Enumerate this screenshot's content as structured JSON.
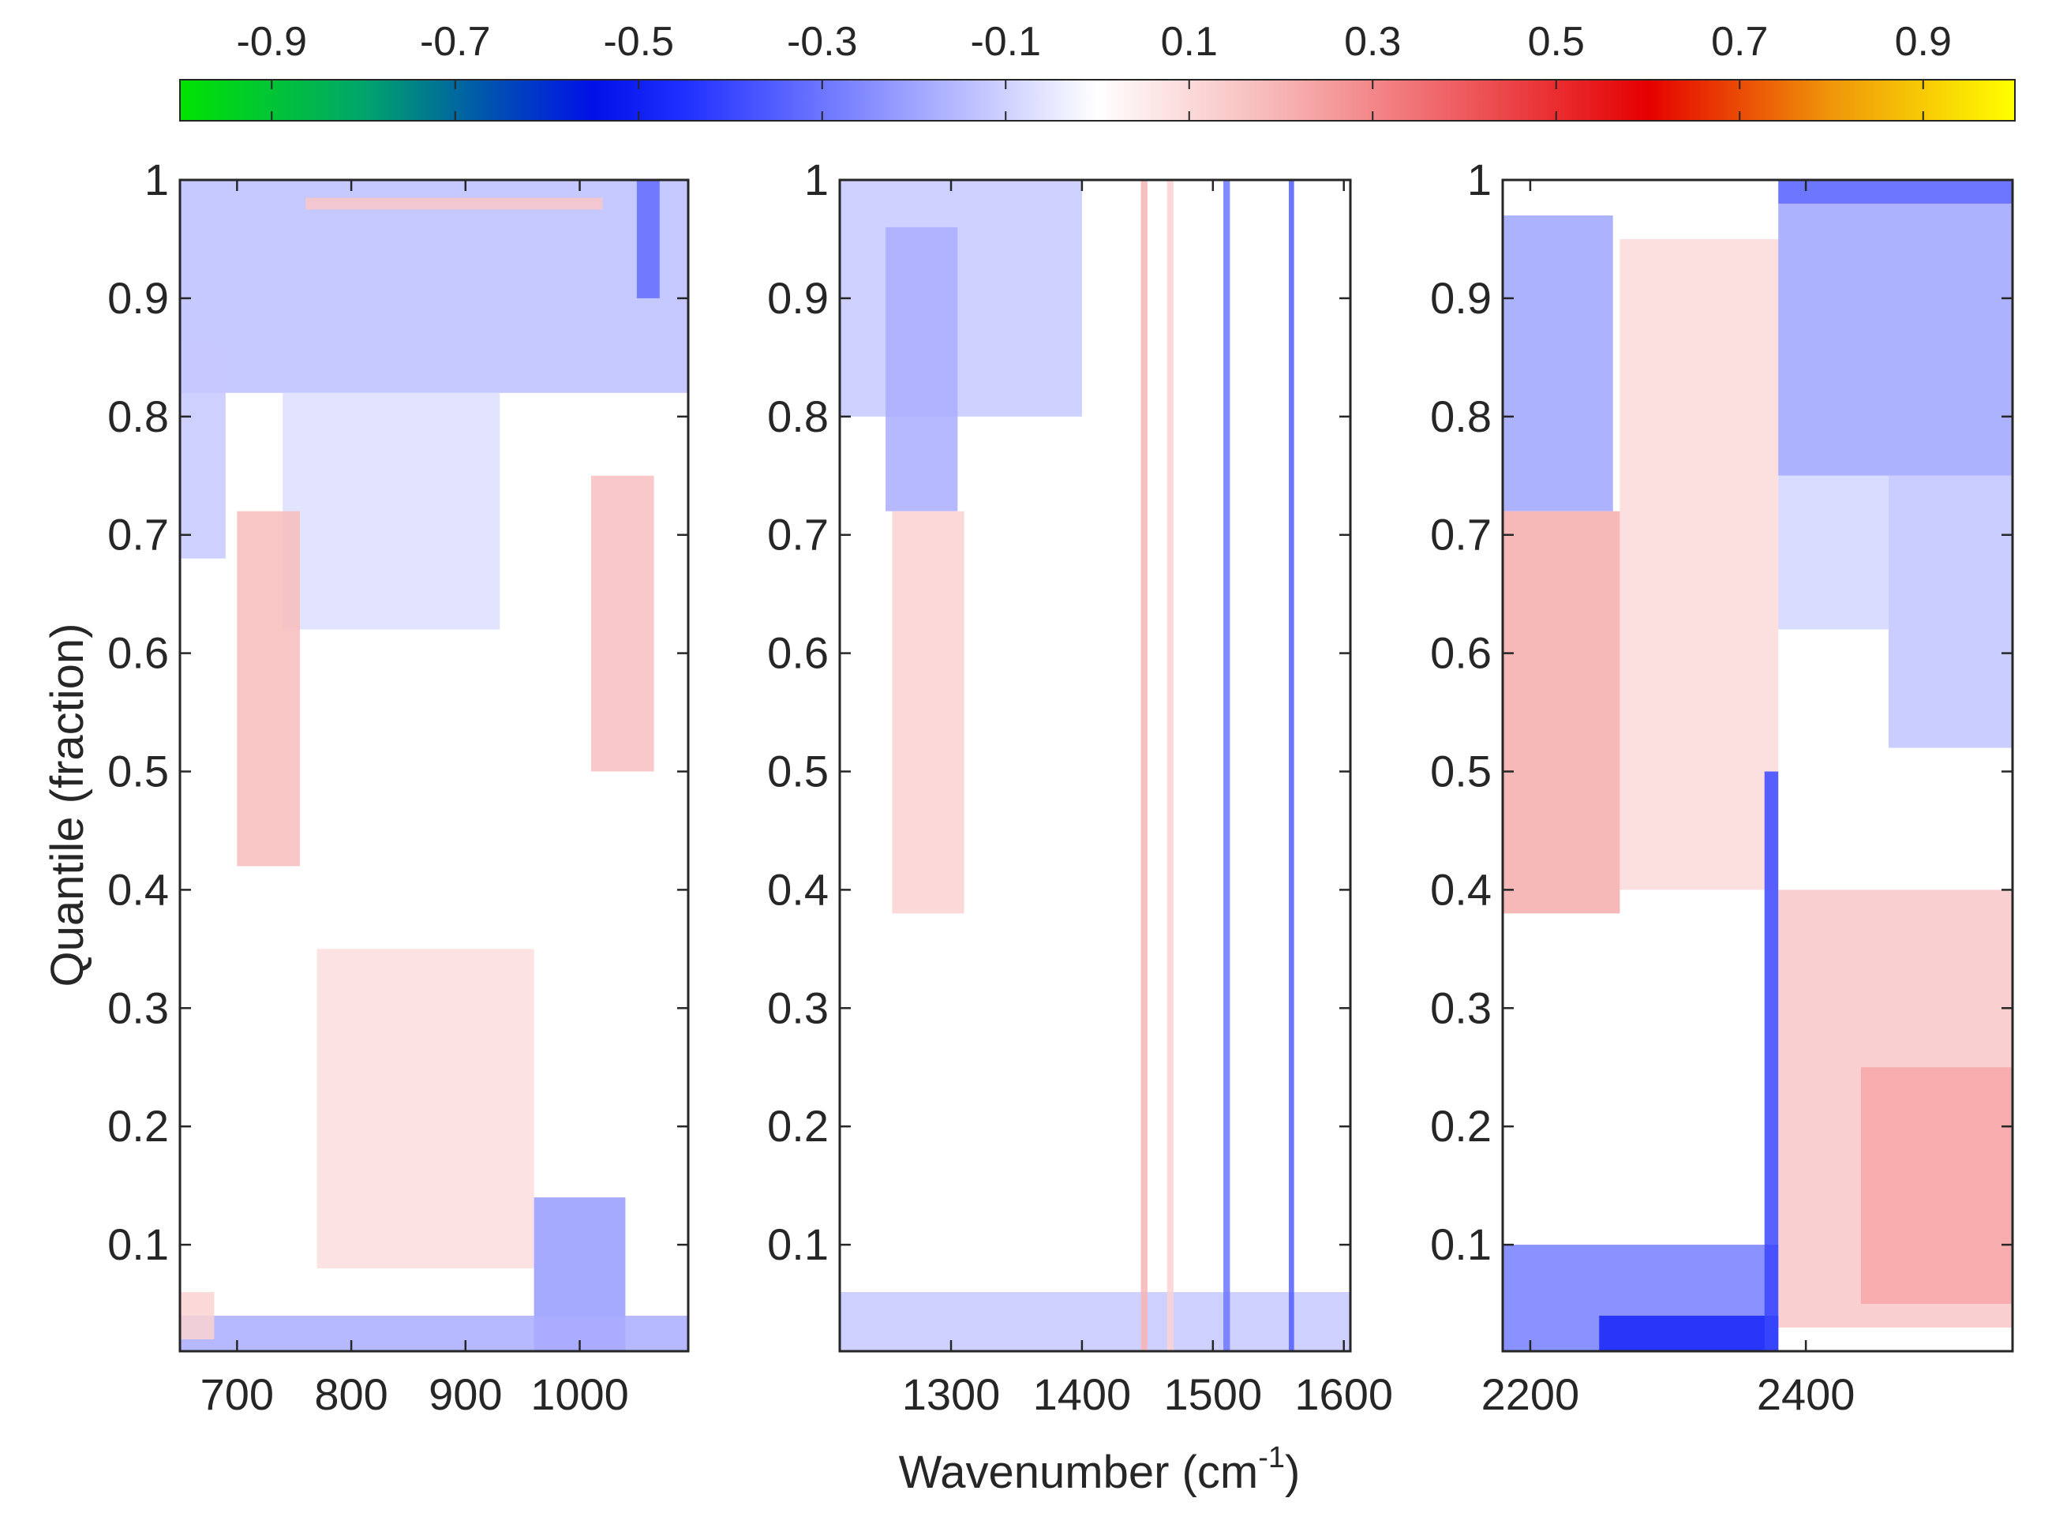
{
  "chart_data": {
    "type": "heatmap",
    "colorbar": {
      "tick_labels": [
        "-0.9",
        "-0.7",
        "-0.5",
        "-0.3",
        "-0.1",
        "0.1",
        "0.3",
        "0.5",
        "0.7",
        "0.9"
      ],
      "tick_values": [
        -0.9,
        -0.7,
        -0.5,
        -0.3,
        -0.1,
        0.1,
        0.3,
        0.5,
        0.7,
        0.9
      ],
      "range": [
        -1,
        1
      ],
      "colormap_stops": [
        {
          "value": -1.0,
          "color": "#00e400"
        },
        {
          "value": -0.8,
          "color": "#00a56b"
        },
        {
          "value": -0.55,
          "color": "#0010e8"
        },
        {
          "value": -0.45,
          "color": "#2030ff"
        },
        {
          "value": -0.2,
          "color": "#9fa4ff"
        },
        {
          "value": 0.0,
          "color": "#ffffff"
        },
        {
          "value": 0.2,
          "color": "#f7b4b4"
        },
        {
          "value": 0.4,
          "color": "#ee5a5e"
        },
        {
          "value": 0.6,
          "color": "#e50000"
        },
        {
          "value": 0.8,
          "color": "#f0960a"
        },
        {
          "value": 1.0,
          "color": "#ffff00"
        }
      ]
    },
    "ylabel": "Quantile (fraction)",
    "xlabel_main": "Wavenumber (cm",
    "xlabel_superscript": "-1",
    "xlabel_close": ")",
    "ylim": [
      0.01,
      1
    ],
    "y_ticks": [
      0.1,
      0.2,
      0.3,
      0.4,
      0.5,
      0.6,
      0.7,
      0.8,
      0.9,
      1
    ],
    "y_tick_labels": [
      "0.1",
      "0.2",
      "0.3",
      "0.4",
      "0.5",
      "0.6",
      "0.7",
      "0.8",
      "0.9",
      "1"
    ],
    "panels": [
      {
        "name": "panel-1",
        "xlim": [
          650,
          1095
        ],
        "x_ticks": [
          700,
          800,
          900,
          1000
        ],
        "x_tick_labels": [
          "700",
          "800",
          "900",
          "1000"
        ],
        "features": [
          {
            "x0": 650,
            "x1": 1095,
            "y0": 0.82,
            "y1": 1.0,
            "value": -0.14
          },
          {
            "x0": 740,
            "x1": 930,
            "y0": 0.62,
            "y1": 0.82,
            "value": -0.07
          },
          {
            "x0": 650,
            "x1": 690,
            "y0": 0.68,
            "y1": 0.86,
            "value": -0.12
          },
          {
            "x0": 700,
            "x1": 755,
            "y0": 0.42,
            "y1": 0.72,
            "value": 0.18
          },
          {
            "x0": 1010,
            "x1": 1065,
            "y0": 0.5,
            "y1": 0.75,
            "value": 0.17
          },
          {
            "x0": 770,
            "x1": 960,
            "y0": 0.08,
            "y1": 0.35,
            "value": 0.09
          },
          {
            "x0": 960,
            "x1": 1040,
            "y0": 0.01,
            "y1": 0.14,
            "value": -0.22
          },
          {
            "x0": 650,
            "x1": 1095,
            "y0": 0.01,
            "y1": 0.04,
            "value": -0.18
          },
          {
            "x0": 1050,
            "x1": 1070,
            "y0": 0.9,
            "y1": 1.0,
            "value": -0.32
          },
          {
            "x0": 760,
            "x1": 1020,
            "y0": 0.975,
            "y1": 0.985,
            "value": 0.15
          },
          {
            "x0": 650,
            "x1": 680,
            "y0": 0.02,
            "y1": 0.06,
            "value": 0.12
          }
        ]
      },
      {
        "name": "panel-2",
        "xlim": [
          1215,
          1605
        ],
        "x_ticks": [
          1300,
          1400,
          1500,
          1600
        ],
        "x_tick_labels": [
          "1300",
          "1400",
          "1500",
          "1600"
        ],
        "features": [
          {
            "x0": 1215,
            "x1": 1400,
            "y0": 0.8,
            "y1": 1.0,
            "value": -0.12
          },
          {
            "x0": 1250,
            "x1": 1305,
            "y0": 0.72,
            "y1": 0.96,
            "value": -0.18
          },
          {
            "x0": 1255,
            "x1": 1310,
            "y0": 0.38,
            "y1": 0.72,
            "value": 0.12
          },
          {
            "x0": 1215,
            "x1": 1605,
            "y0": 0.01,
            "y1": 0.06,
            "value": -0.12
          },
          {
            "x0": 1445,
            "x1": 1450,
            "y0": 0.01,
            "y1": 1.0,
            "value": 0.2
          },
          {
            "x0": 1508,
            "x1": 1513,
            "y0": 0.01,
            "y1": 1.0,
            "value": -0.3
          },
          {
            "x0": 1558,
            "x1": 1562,
            "y0": 0.01,
            "y1": 1.0,
            "value": -0.35
          },
          {
            "x0": 1465,
            "x1": 1470,
            "y0": 0.01,
            "y1": 1.0,
            "value": 0.12
          }
        ]
      },
      {
        "name": "panel-3",
        "xlim": [
          2180,
          2550
        ],
        "x_ticks": [
          2200,
          2400
        ],
        "x_tick_labels": [
          "2200",
          "2400"
        ],
        "features": [
          {
            "x0": 2180,
            "x1": 2260,
            "y0": 0.72,
            "y1": 0.97,
            "value": -0.2
          },
          {
            "x0": 2180,
            "x1": 2265,
            "y0": 0.38,
            "y1": 0.72,
            "value": 0.22
          },
          {
            "x0": 2265,
            "x1": 2380,
            "y0": 0.4,
            "y1": 0.95,
            "value": 0.1
          },
          {
            "x0": 2380,
            "x1": 2550,
            "y0": 0.75,
            "y1": 0.98,
            "value": -0.2
          },
          {
            "x0": 2460,
            "x1": 2550,
            "y0": 0.52,
            "y1": 0.75,
            "value": -0.13
          },
          {
            "x0": 2380,
            "x1": 2460,
            "y0": 0.62,
            "y1": 0.75,
            "value": -0.09
          },
          {
            "x0": 2380,
            "x1": 2550,
            "y0": 0.03,
            "y1": 0.4,
            "value": 0.15
          },
          {
            "x0": 2440,
            "x1": 2550,
            "y0": 0.05,
            "y1": 0.25,
            "value": 0.23
          },
          {
            "x0": 2180,
            "x1": 2380,
            "y0": 0.01,
            "y1": 0.1,
            "value": -0.28
          },
          {
            "x0": 2250,
            "x1": 2380,
            "y0": 0.01,
            "y1": 0.04,
            "value": -0.48
          },
          {
            "x0": 2370,
            "x1": 2380,
            "y0": 0.01,
            "y1": 0.5,
            "value": -0.4
          },
          {
            "x0": 2380,
            "x1": 2550,
            "y0": 0.98,
            "y1": 1.0,
            "value": -0.35
          }
        ]
      }
    ]
  }
}
